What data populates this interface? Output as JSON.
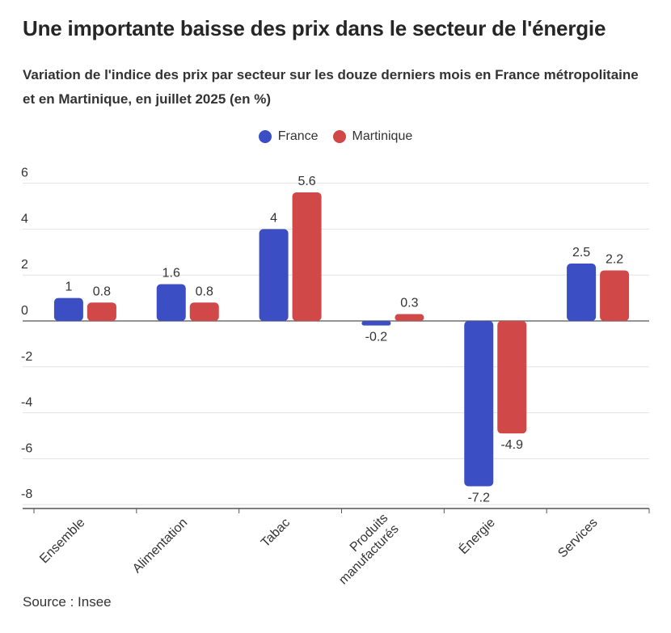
{
  "title": "Une importante baisse des prix dans le secteur de l'énergie",
  "subtitle": "Variation de l'indice des prix par secteur sur les douze derniers mois en France métropolitaine et en Martinique, en juillet 2025 (en %)",
  "source": "Source : Insee",
  "colors": {
    "france": "#3c4ec4",
    "martinique": "#d14848",
    "grid": "#e2e2e2",
    "axis": "#555555"
  },
  "chart_data": {
    "type": "bar",
    "categories": [
      "Ensemble",
      "Alimentation",
      "Tabac",
      "Produits manufacturés",
      "Énergie",
      "Services"
    ],
    "category_lines": [
      [
        "Ensemble"
      ],
      [
        "Alimentation"
      ],
      [
        "Tabac"
      ],
      [
        "Produits",
        "manufacturés"
      ],
      [
        "Énergie"
      ],
      [
        "Services"
      ]
    ],
    "series": [
      {
        "name": "France",
        "values": [
          1,
          1.6,
          4,
          -0.2,
          -7.2,
          2.5
        ],
        "labels": [
          "1",
          "1.6",
          "4",
          "-0.2",
          "-7.2",
          "2.5"
        ]
      },
      {
        "name": "Martinique",
        "values": [
          0.8,
          0.8,
          5.6,
          0.3,
          -4.9,
          2.2
        ],
        "labels": [
          "0.8",
          "0.8",
          "5.6",
          "0.3",
          "-4.9",
          "2.2"
        ]
      }
    ],
    "yticks": [
      6,
      4,
      2,
      0,
      -2,
      -4,
      -6,
      -8
    ],
    "ylim": [
      -8,
      6
    ],
    "legend_position": "top-center",
    "grid": true
  }
}
